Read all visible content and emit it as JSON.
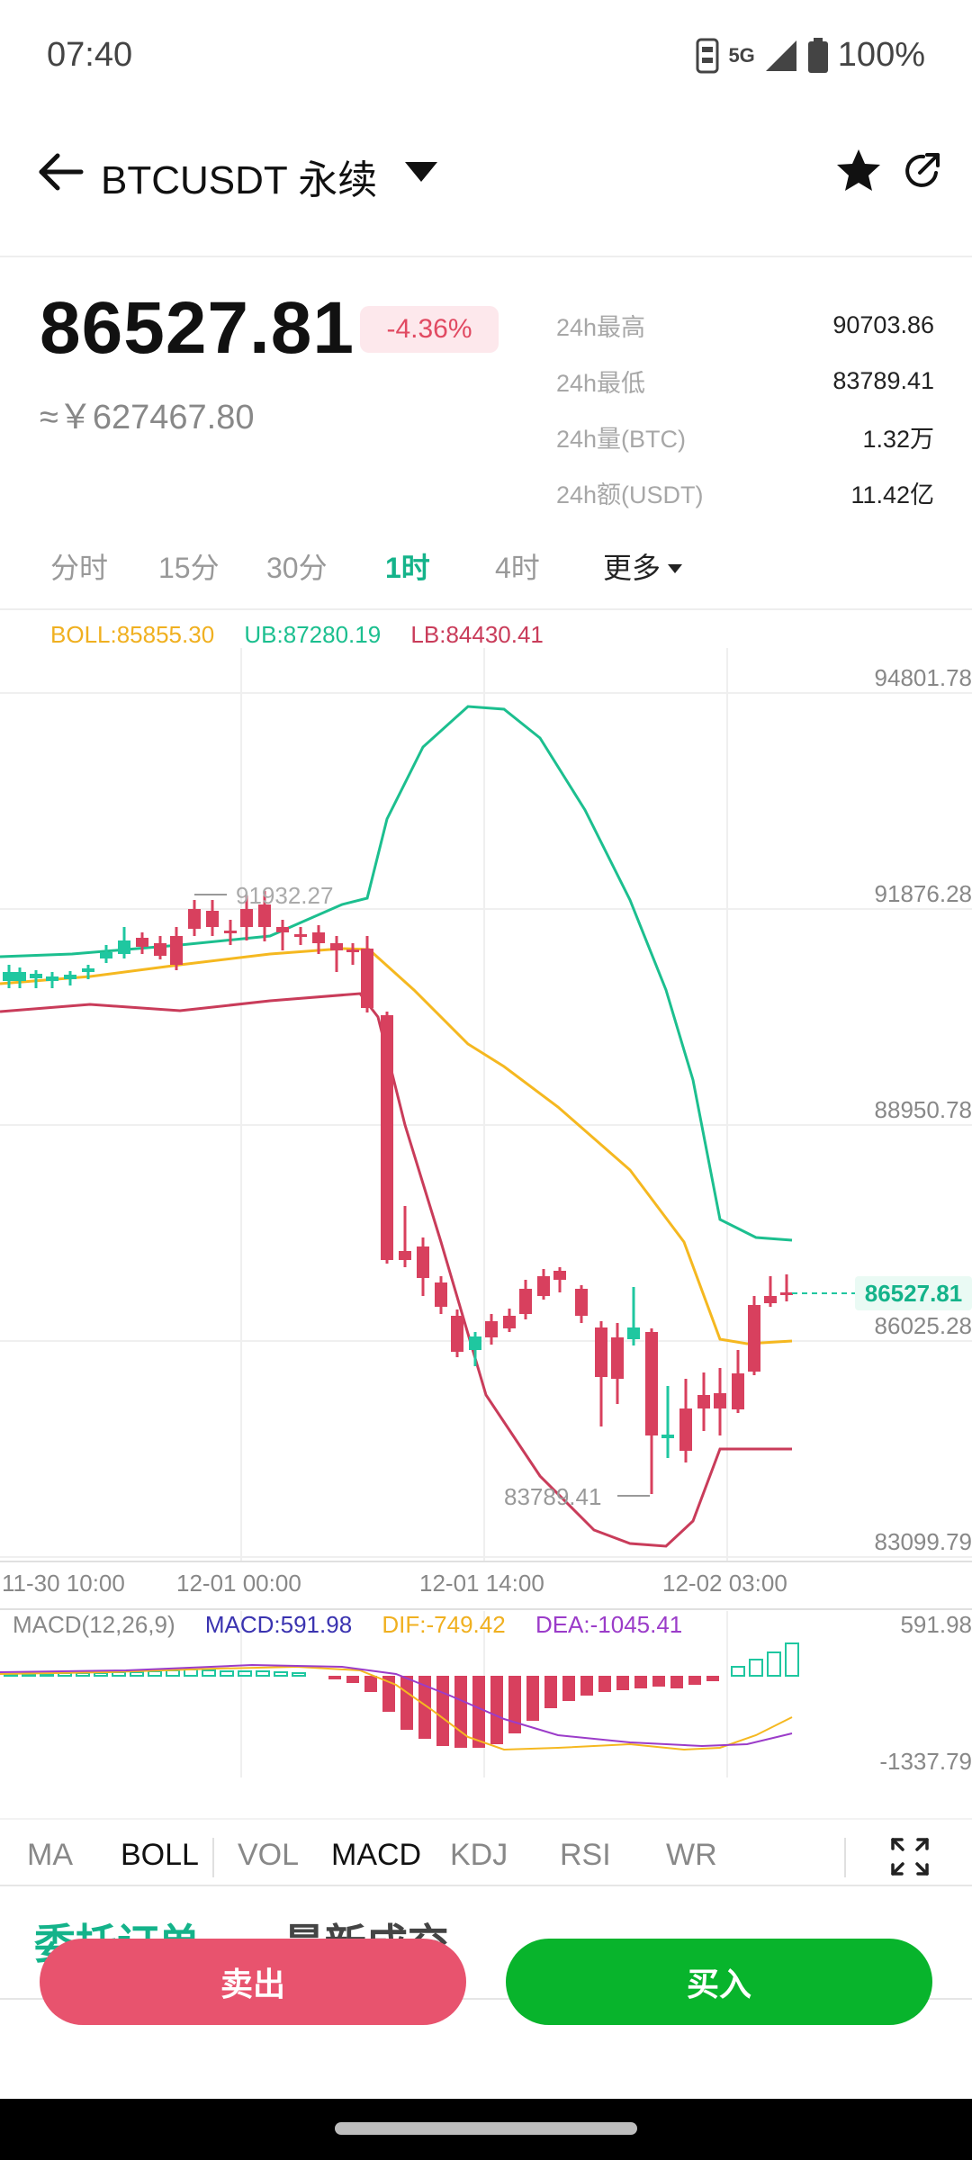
{
  "status_bar": {
    "time": "07:40",
    "network": "5G",
    "battery": "100%",
    "icons": [
      "sim-icon",
      "signal-icon",
      "battery-icon"
    ]
  },
  "header": {
    "title": "BTCUSDT 永续",
    "icons": [
      "back-arrow-icon",
      "dropdown-caret-icon",
      "star-icon",
      "share-icon"
    ]
  },
  "price": {
    "last": "86527.81",
    "change": "-4.36%",
    "cny": "≈￥627467.80"
  },
  "stats": [
    {
      "label": "24h最高",
      "value": "90703.86"
    },
    {
      "label": "24h最低",
      "value": "83789.41"
    },
    {
      "label": "24h量(BTC)",
      "value": "1.32万"
    },
    {
      "label": "24h额(USDT)",
      "value": "11.42亿"
    }
  ],
  "intervals": [
    {
      "label": "分时",
      "active": false
    },
    {
      "label": "15分",
      "active": false
    },
    {
      "label": "30分",
      "active": false
    },
    {
      "label": "1时",
      "active": true
    },
    {
      "label": "4时",
      "active": false
    },
    {
      "label": "更多",
      "active": false
    }
  ],
  "boll_legend": {
    "boll": "BOLL:85855.30",
    "ub": "UB:87280.19",
    "lb": "LB:84430.41"
  },
  "chart": {
    "price_axis": [
      "94801.78",
      "91876.28",
      "88950.78",
      "86025.28",
      "83099.79"
    ],
    "time_axis": [
      "11-30 10:00",
      "12-01 00:00",
      "12-01 14:00",
      "12-02 03:00"
    ],
    "high_marker": "91932.27",
    "low_marker": "83789.41",
    "last_price_tag": "86527.81"
  },
  "macd_legend": {
    "params": "MACD(12,26,9)",
    "macd": "MACD:591.98",
    "dif": "DIF:-749.42",
    "dea": "DEA:-1045.41",
    "axis_top": "591.98",
    "axis_bottom": "-1337.79"
  },
  "indicator_tabs": [
    "MA",
    "BOLL",
    "VOL",
    "MACD",
    "KDJ",
    "RSI",
    "WR"
  ],
  "order_tabs": [
    "委托订单",
    "最新成交"
  ],
  "buttons": {
    "sell": "卖出",
    "buy": "买入"
  },
  "colors": {
    "up": "#1fc7a0",
    "down": "#d8405e",
    "boll_mid": "#f5b820",
    "boll_ub": "#1cbf8f",
    "boll_lb": "#c93c5a",
    "accent": "#14b38a",
    "dea": "#9b3cc9",
    "macd": "#3a33b0"
  }
}
